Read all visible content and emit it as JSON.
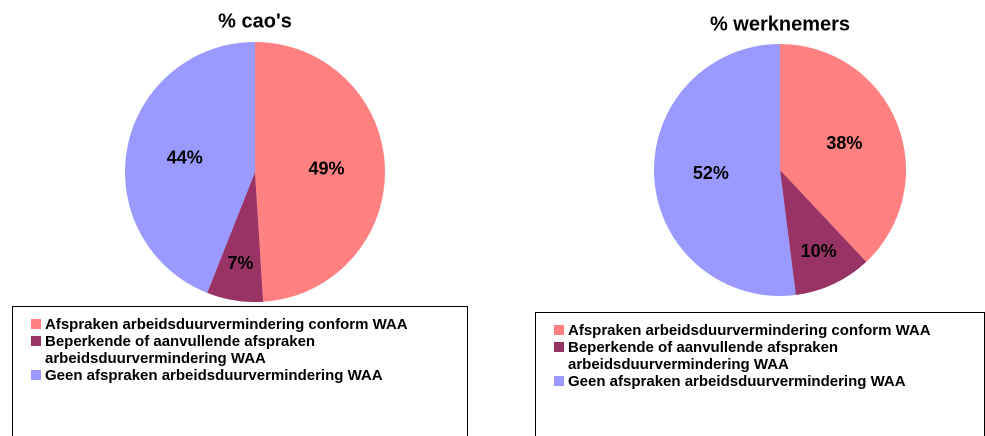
{
  "chart_data": [
    {
      "type": "pie",
      "title": "% cao's",
      "categories": [
        "Afspraken arbeidsduurvermindering conform WAA",
        "Beperkende of aanvullende afspraken arbeidsduurvermindering WAA",
        "Geen afspraken arbeidsduurvermindering WAA"
      ],
      "values": [
        49,
        7,
        44
      ],
      "value_labels": [
        "49%",
        "7%",
        "44%"
      ],
      "colors": [
        "#FF8080",
        "#993366",
        "#9999FF"
      ]
    },
    {
      "type": "pie",
      "title": "% werknemers",
      "categories": [
        "Afspraken arbeidsduurvermindering conform WAA",
        "Beperkende of aanvullende afspraken arbeidsduurvermindering WAA",
        "Geen afspraken arbeidsduurvermindering WAA"
      ],
      "values": [
        38,
        10,
        52
      ],
      "value_labels": [
        "38%",
        "10%",
        "52%"
      ],
      "colors": [
        "#FF8080",
        "#993366",
        "#9999FF"
      ]
    }
  ]
}
